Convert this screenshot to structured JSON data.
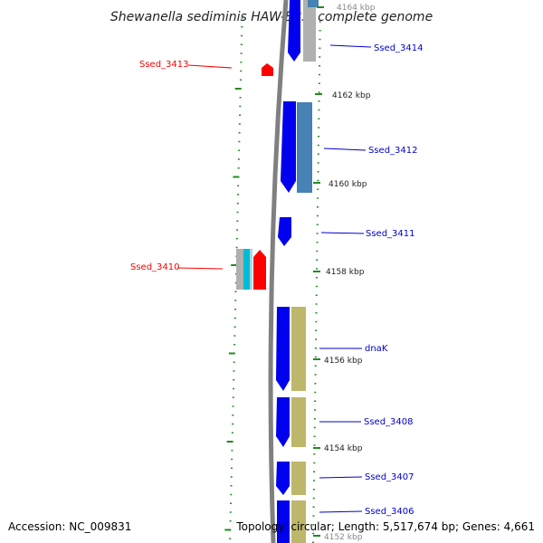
{
  "title": "Shewanella sediminis HAW-EB3, complete genome",
  "accession": "Accession: NC_009831",
  "topology": "Topology: circular; Length: 5,517,674 bp; Genes: 4,661",
  "colors": {
    "forward_label": "#ff0000",
    "reverse_label": "#0000cc",
    "cds_blue": "#0000ee",
    "steel_blue": "#4682b4",
    "khaki": "#bdb76b",
    "grey": "#b0b0b0",
    "red_feature": "#ff0000",
    "cyan_feature": "#00bcd4",
    "tick_green": "#228b22",
    "backbone": "#808080"
  },
  "gene_labels": [
    {
      "id": "Ssed_3414",
      "side": "right"
    },
    {
      "id": "Ssed_3413",
      "side": "left"
    },
    {
      "id": "Ssed_3412",
      "side": "right"
    },
    {
      "id": "Ssed_3411",
      "side": "right"
    },
    {
      "id": "Ssed_3410",
      "side": "left"
    },
    {
      "id": "dnaK",
      "side": "right"
    },
    {
      "id": "Ssed_3408",
      "side": "right"
    },
    {
      "id": "Ssed_3407",
      "side": "right"
    },
    {
      "id": "Ssed_3406",
      "side": "right"
    }
  ],
  "kbp_labels": [
    "4164 kbp",
    "4162 kbp",
    "4160 kbp",
    "4158 kbp",
    "4156 kbp",
    "4154 kbp",
    "4152 kbp"
  ]
}
